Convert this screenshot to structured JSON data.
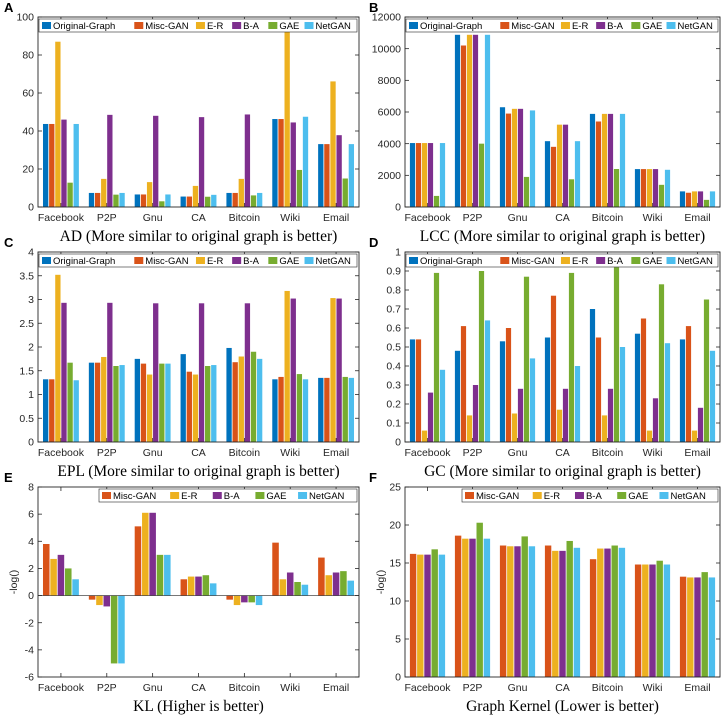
{
  "colors": [
    "#0072BD",
    "#D95319",
    "#EDB120",
    "#7E2F8E",
    "#77AC30",
    "#4DBEEE"
  ],
  "chart_data": [
    {
      "type": "bar",
      "letter": "A",
      "caption": "AD (More similar to original graph is better)",
      "categories": [
        "Facebook",
        "P2P",
        "Gnu",
        "CA",
        "Bitcoin",
        "Wiki",
        "Email"
      ],
      "ylim": [
        0,
        100
      ],
      "yticks": [
        0,
        20,
        40,
        60,
        80,
        100
      ],
      "ytick_labels": [
        "0",
        "20",
        "40",
        "60",
        "80",
        "100"
      ],
      "ylabel": "",
      "legend": [
        "Original-Graph",
        "Misc-GAN",
        "E-R",
        "B-A",
        "GAE",
        "NetGAN"
      ],
      "series": [
        {
          "name": "Original-Graph",
          "values": [
            43.7,
            7.4,
            6.6,
            5.5,
            7.4,
            46.3,
            33.1
          ]
        },
        {
          "name": "Misc-GAN",
          "values": [
            43.7,
            7.4,
            6.6,
            5.5,
            7.4,
            46.3,
            33.1
          ]
        },
        {
          "name": "E-R",
          "values": [
            87.0,
            14.8,
            13.1,
            11.1,
            14.8,
            92.3,
            66.1
          ]
        },
        {
          "name": "B-A",
          "values": [
            46.0,
            48.5,
            48.0,
            47.3,
            48.7,
            44.5,
            37.8
          ]
        },
        {
          "name": "GAE",
          "values": [
            12.8,
            6.5,
            3.0,
            5.4,
            6.1,
            19.5,
            15.0
          ]
        },
        {
          "name": "NetGAN",
          "values": [
            43.7,
            7.4,
            6.6,
            6.4,
            7.4,
            47.5,
            33.1
          ]
        }
      ]
    },
    {
      "type": "bar",
      "letter": "B",
      "caption": "LCC (More similar to original graph is better)",
      "categories": [
        "Facebook",
        "P2P",
        "Gnu",
        "CA",
        "Bitcoin",
        "Wiki",
        "Email"
      ],
      "ylim": [
        0,
        12000
      ],
      "yticks": [
        0,
        2000,
        4000,
        6000,
        8000,
        10000,
        12000
      ],
      "ytick_labels": [
        "0",
        "2000",
        "4000",
        "6000",
        "8000",
        "10000",
        "12000"
      ],
      "ylabel": "",
      "legend": [
        "Original-Graph",
        "Misc-GAN",
        "E-R",
        "B-A",
        "GAE",
        "NetGAN"
      ],
      "series": [
        {
          "name": "Original-Graph",
          "values": [
            4039,
            10876,
            6301,
            4158,
            5881,
            2394,
            986
          ]
        },
        {
          "name": "Misc-GAN",
          "values": [
            4039,
            10200,
            5900,
            3800,
            5400,
            2394,
            900
          ]
        },
        {
          "name": "E-R",
          "values": [
            4039,
            10876,
            6200,
            5200,
            5881,
            2394,
            986
          ]
        },
        {
          "name": "B-A",
          "values": [
            4039,
            10876,
            6200,
            5200,
            5881,
            2394,
            986
          ]
        },
        {
          "name": "GAE",
          "values": [
            700,
            4000,
            1900,
            1750,
            2400,
            1400,
            450
          ]
        },
        {
          "name": "NetGAN",
          "values": [
            4039,
            10876,
            6100,
            4158,
            5881,
            2350,
            986
          ]
        }
      ]
    },
    {
      "type": "bar",
      "letter": "C",
      "caption": "EPL (More similar to original graph is better)",
      "categories": [
        "Facebook",
        "P2P",
        "Gnu",
        "CA",
        "Bitcoin",
        "Wiki",
        "Email"
      ],
      "ylim": [
        0,
        4
      ],
      "yticks": [
        0,
        0.5,
        1,
        1.5,
        2,
        2.5,
        3,
        3.5,
        4
      ],
      "ytick_labels": [
        "0",
        "0.5",
        "1",
        "1.5",
        "2",
        "2.5",
        "3",
        "3.5",
        "4"
      ],
      "ylabel": "",
      "legend": [
        "Original-Graph",
        "Misc-GAN",
        "E-R",
        "B-A",
        "GAE",
        "NetGAN"
      ],
      "series": [
        {
          "name": "Original-Graph",
          "values": [
            1.32,
            1.67,
            1.75,
            1.85,
            1.98,
            1.32,
            1.35
          ]
        },
        {
          "name": "Misc-GAN",
          "values": [
            1.32,
            1.67,
            1.65,
            1.48,
            1.68,
            1.37,
            1.35
          ]
        },
        {
          "name": "E-R",
          "values": [
            3.52,
            1.79,
            1.42,
            1.42,
            1.8,
            3.18,
            3.03
          ]
        },
        {
          "name": "B-A",
          "values": [
            2.93,
            2.93,
            2.92,
            2.92,
            2.92,
            3.02,
            3.02
          ]
        },
        {
          "name": "GAE",
          "values": [
            1.67,
            1.6,
            1.65,
            1.6,
            1.9,
            1.43,
            1.37
          ]
        },
        {
          "name": "NetGAN",
          "values": [
            1.3,
            1.62,
            1.65,
            1.62,
            1.75,
            1.32,
            1.35
          ]
        }
      ]
    },
    {
      "type": "bar",
      "letter": "D",
      "caption": "GC (More similar to original graph is better)",
      "categories": [
        "Facebook",
        "P2P",
        "Gnu",
        "CA",
        "Bitcoin",
        "Wiki",
        "Email"
      ],
      "ylim": [
        0,
        1
      ],
      "yticks": [
        0,
        0.1,
        0.2,
        0.3,
        0.4,
        0.5,
        0.6,
        0.7,
        0.8,
        0.9,
        1
      ],
      "ytick_labels": [
        "0",
        "0.1",
        "0.2",
        "0.3",
        "0.4",
        "0.5",
        "0.6",
        "0.7",
        "0.8",
        "0.9",
        "1"
      ],
      "ylabel": "",
      "legend": [
        "Original-Graph",
        "Misc-GAN",
        "E-R",
        "B-A",
        "GAE",
        "NetGAN"
      ],
      "series": [
        {
          "name": "Original-Graph",
          "values": [
            0.54,
            0.48,
            0.53,
            0.55,
            0.7,
            0.57,
            0.54
          ]
        },
        {
          "name": "Misc-GAN",
          "values": [
            0.54,
            0.61,
            0.6,
            0.77,
            0.55,
            0.65,
            0.61
          ]
        },
        {
          "name": "E-R",
          "values": [
            0.06,
            0.14,
            0.15,
            0.17,
            0.14,
            0.06,
            0.06
          ]
        },
        {
          "name": "B-A",
          "values": [
            0.26,
            0.3,
            0.28,
            0.28,
            0.28,
            0.23,
            0.18
          ]
        },
        {
          "name": "GAE",
          "values": [
            0.89,
            0.9,
            0.87,
            0.89,
            0.92,
            0.83,
            0.75
          ]
        },
        {
          "name": "NetGAN",
          "values": [
            0.38,
            0.64,
            0.44,
            0.4,
            0.5,
            0.52,
            0.48
          ]
        }
      ]
    },
    {
      "type": "bar",
      "letter": "E",
      "caption": "KL (Higher is better)",
      "categories": [
        "Facebook",
        "P2P",
        "Gnu",
        "CA",
        "Bitcoin",
        "Wiki",
        "Email"
      ],
      "ylim": [
        -6,
        8
      ],
      "yticks": [
        -6,
        -4,
        -2,
        0,
        2,
        4,
        6,
        8
      ],
      "ytick_labels": [
        "-6",
        "-4",
        "-2",
        "0",
        "2",
        "4",
        "6",
        "8"
      ],
      "ylabel": "-log()",
      "legend": [
        "Misc-GAN",
        "E-R",
        "B-A",
        "GAE",
        "NetGAN"
      ],
      "color_offset": 1,
      "series": [
        {
          "name": "Misc-GAN",
          "values": [
            3.8,
            -0.3,
            5.1,
            1.2,
            -0.3,
            3.9,
            2.8
          ]
        },
        {
          "name": "E-R",
          "values": [
            2.7,
            -0.7,
            6.1,
            1.4,
            -0.7,
            1.2,
            1.5
          ]
        },
        {
          "name": "B-A",
          "values": [
            3.0,
            -0.8,
            6.1,
            1.4,
            -0.5,
            1.7,
            1.7
          ]
        },
        {
          "name": "GAE",
          "values": [
            2.0,
            -5.0,
            3.0,
            1.5,
            -0.5,
            1.0,
            1.8
          ]
        },
        {
          "name": "NetGAN",
          "values": [
            1.2,
            -5.0,
            3.0,
            0.9,
            -0.7,
            0.8,
            1.1
          ]
        }
      ]
    },
    {
      "type": "bar",
      "letter": "F",
      "caption": "Graph Kernel (Lower is better)",
      "categories": [
        "Facebook",
        "P2P",
        "Gnu",
        "CA",
        "Bitcoin",
        "Wiki",
        "Email"
      ],
      "ylim": [
        0,
        25
      ],
      "yticks": [
        0,
        5,
        10,
        15,
        20,
        25
      ],
      "ytick_labels": [
        "0",
        "5",
        "10",
        "15",
        "20",
        "25"
      ],
      "ylabel": "-log()",
      "legend": [
        "Misc-GAN",
        "E-R",
        "B-A",
        "GAE",
        "NetGAN"
      ],
      "color_offset": 1,
      "series": [
        {
          "name": "Misc-GAN",
          "values": [
            16.2,
            18.6,
            17.3,
            17.3,
            15.5,
            14.8,
            13.2
          ]
        },
        {
          "name": "E-R",
          "values": [
            16.1,
            18.2,
            17.2,
            16.6,
            16.9,
            14.8,
            13.1
          ]
        },
        {
          "name": "B-A",
          "values": [
            16.1,
            18.2,
            17.2,
            16.6,
            16.9,
            14.8,
            13.1
          ]
        },
        {
          "name": "GAE",
          "values": [
            16.8,
            20.3,
            18.5,
            17.9,
            17.3,
            15.3,
            13.8
          ]
        },
        {
          "name": "NetGAN",
          "values": [
            16.1,
            18.2,
            17.2,
            17.0,
            17.0,
            14.8,
            13.1
          ]
        }
      ]
    }
  ]
}
